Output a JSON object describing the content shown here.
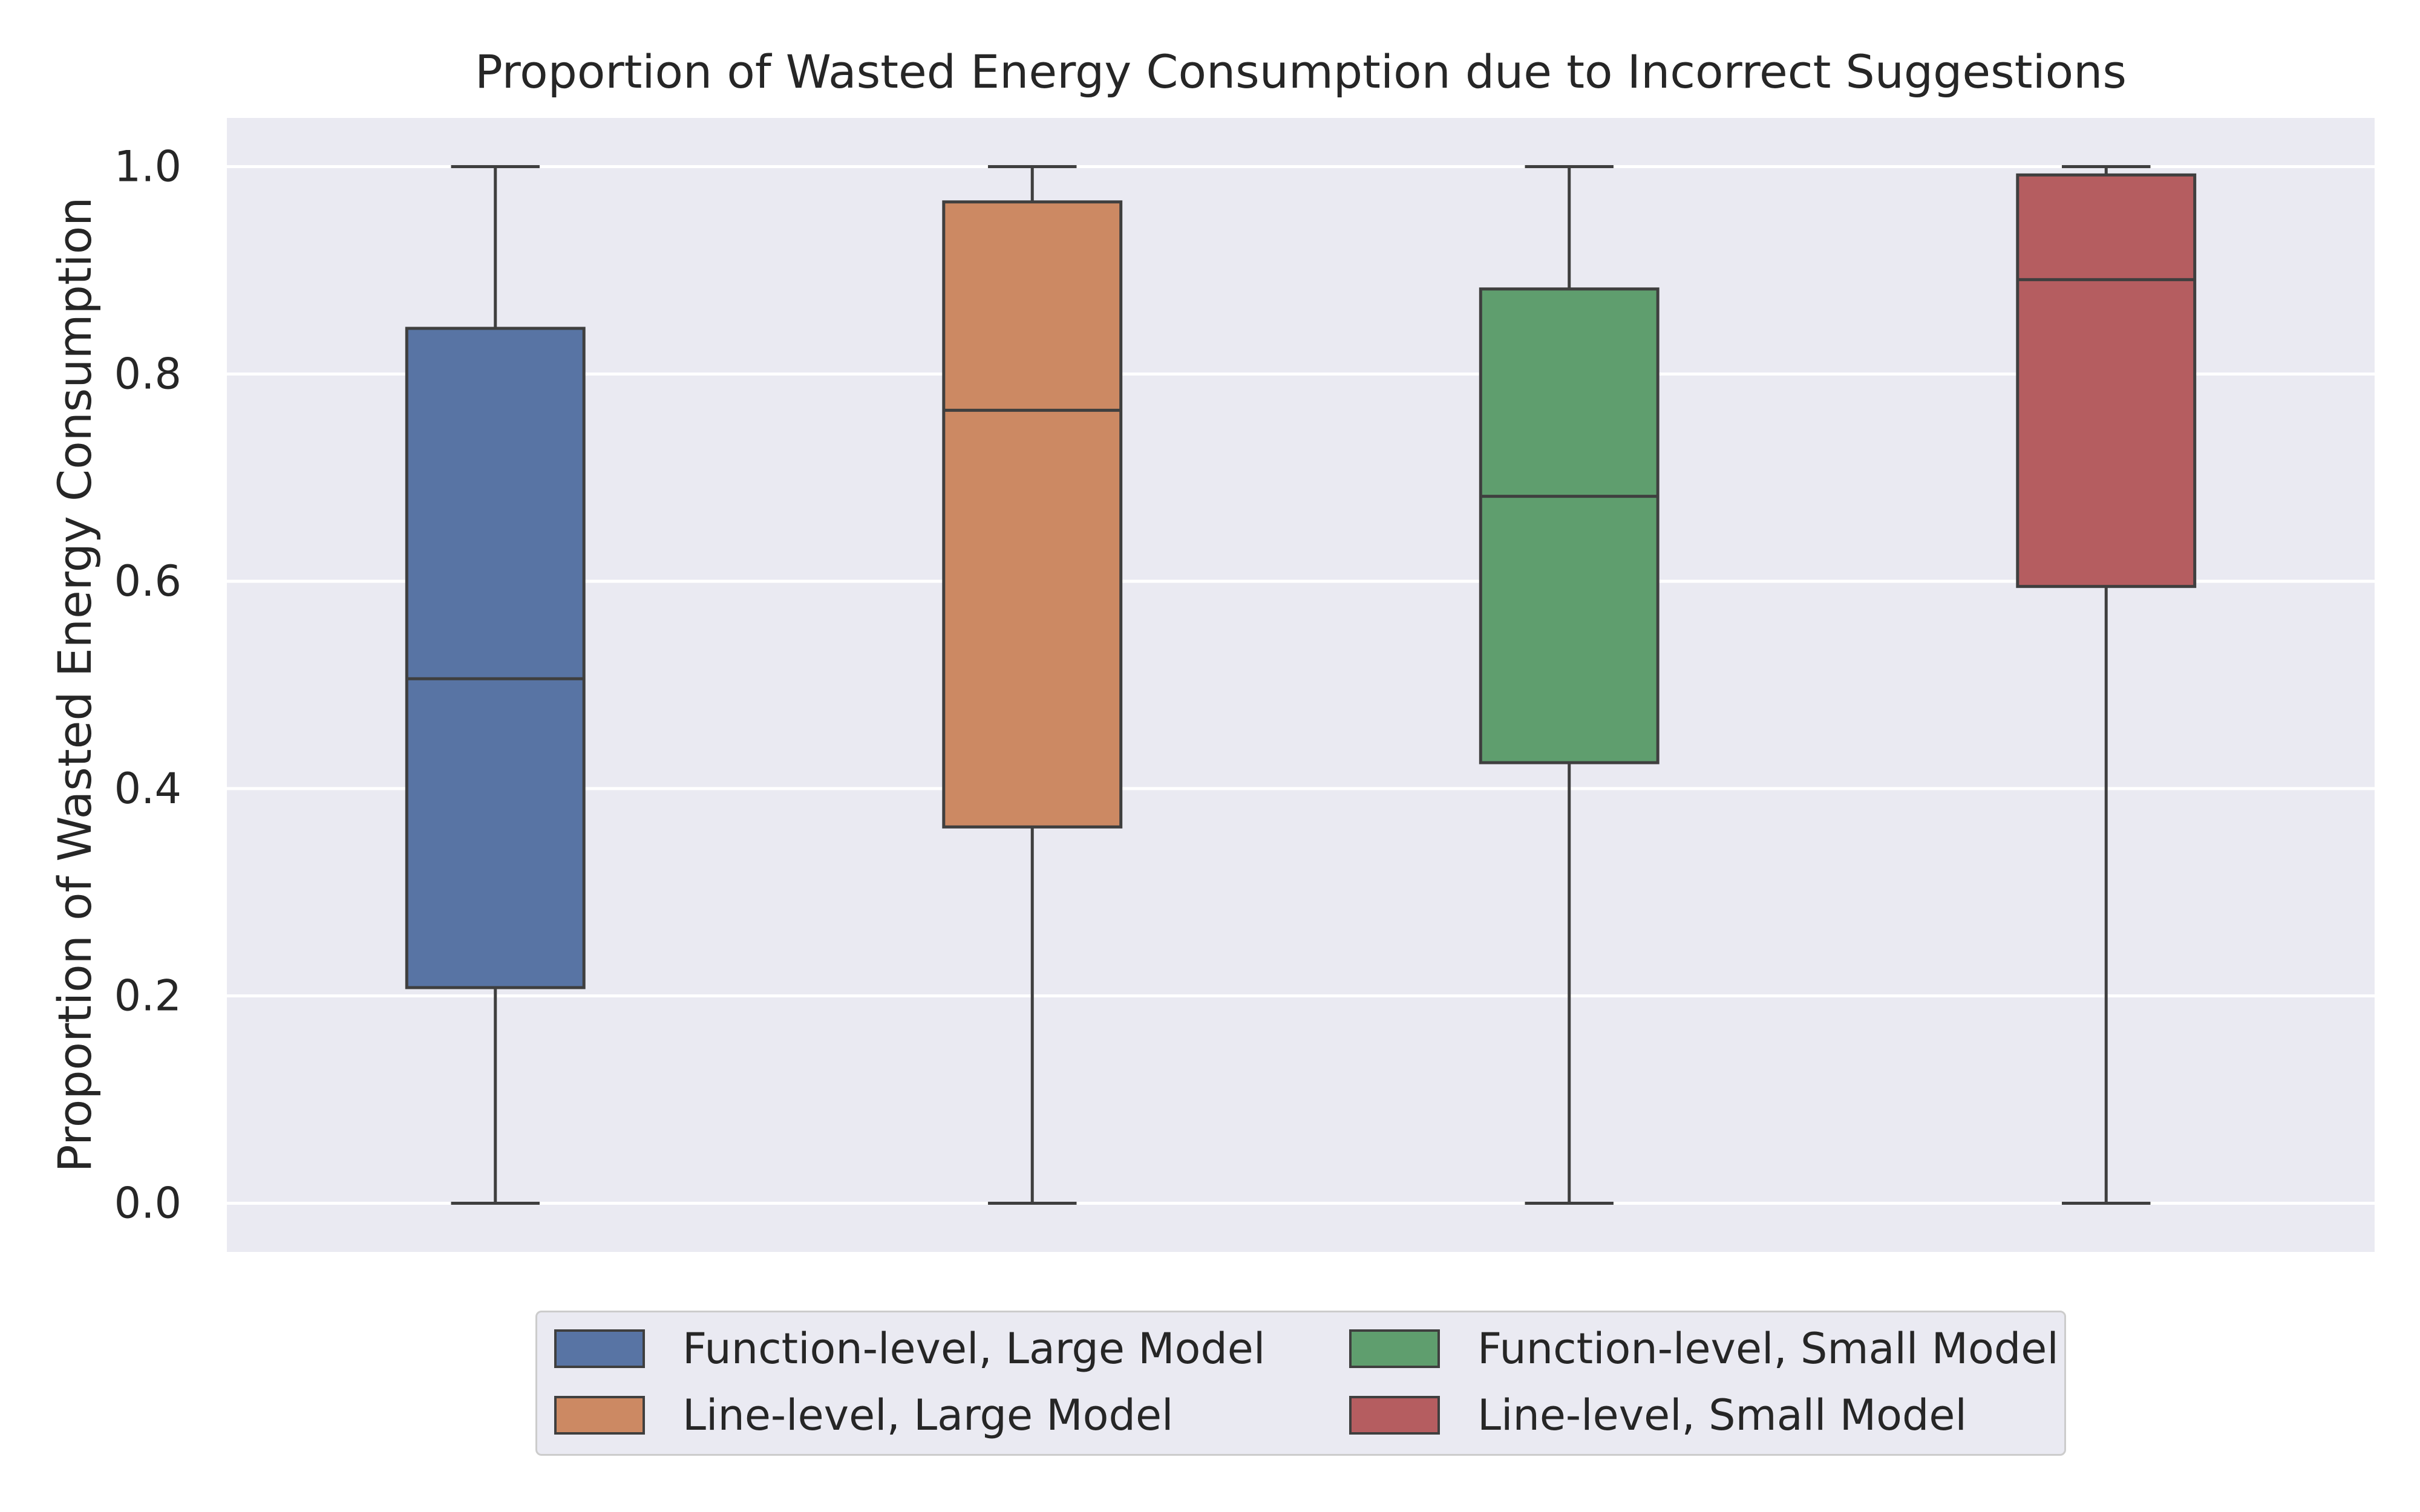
{
  "chart_data": {
    "type": "box",
    "title": "Proportion of Wasted Energy Consumption due to Incorrect Suggestions",
    "xlabel": "",
    "ylabel": "Proportion of Wasted Energy Consumption",
    "ylim": [
      -0.047,
      1.047
    ],
    "yticks": [
      "0.0",
      "0.2",
      "0.4",
      "0.6",
      "0.8",
      "1.0"
    ],
    "grid": true,
    "legend_position": "bottom-center",
    "series": [
      {
        "name": "Function-level, Large Model",
        "color": "#5874a4",
        "min": 0.0,
        "q1": 0.208,
        "median": 0.506,
        "q3": 0.844,
        "max": 1.0
      },
      {
        "name": "Line-level, Large Model",
        "color": "#cc8963",
        "min": 0.0,
        "q1": 0.363,
        "median": 0.765,
        "q3": 0.966,
        "max": 1.0
      },
      {
        "name": "Function-level, Small Model",
        "color": "#5f9e6e",
        "min": 0.0,
        "q1": 0.425,
        "median": 0.682,
        "q3": 0.882,
        "max": 1.0
      },
      {
        "name": "Line-level, Small Model",
        "color": "#b55d60",
        "min": 0.0,
        "q1": 0.595,
        "median": 0.891,
        "q3": 0.992,
        "max": 1.0
      }
    ]
  }
}
